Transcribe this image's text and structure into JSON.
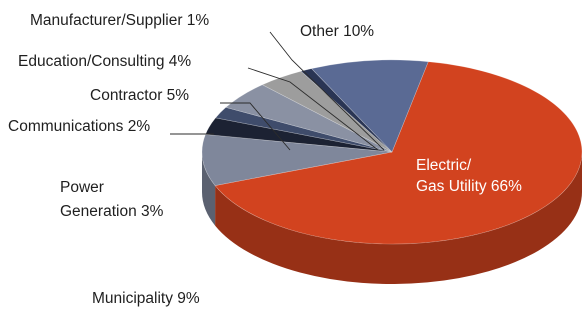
{
  "chart_data": {
    "type": "pie",
    "title": "",
    "slices": [
      {
        "label": "Electric/\nGas Utility",
        "value": 66,
        "value_label": "66%",
        "color": "#d2431f"
      },
      {
        "label": "Municipality",
        "value": 9,
        "value_label": "9%",
        "color": "#7f879b"
      },
      {
        "label": "Power\nGeneration",
        "value": 3,
        "value_label": "3%",
        "color": "#1c2233"
      },
      {
        "label": "Communications",
        "value": 2,
        "value_label": "2%",
        "color": "#3f4c6b"
      },
      {
        "label": "Contractor",
        "value": 5,
        "value_label": "5%",
        "color": "#8a91a3"
      },
      {
        "label": "Education/Consulting",
        "value": 4,
        "value_label": "4%",
        "color": "#9d9d9d"
      },
      {
        "label": "Manufacturer/Supplier",
        "value": 1,
        "value_label": "1%",
        "color": "#2a3554"
      },
      {
        "label": "Other",
        "value": 10,
        "value_label": "10%",
        "color": "#5a6a94"
      }
    ]
  }
}
